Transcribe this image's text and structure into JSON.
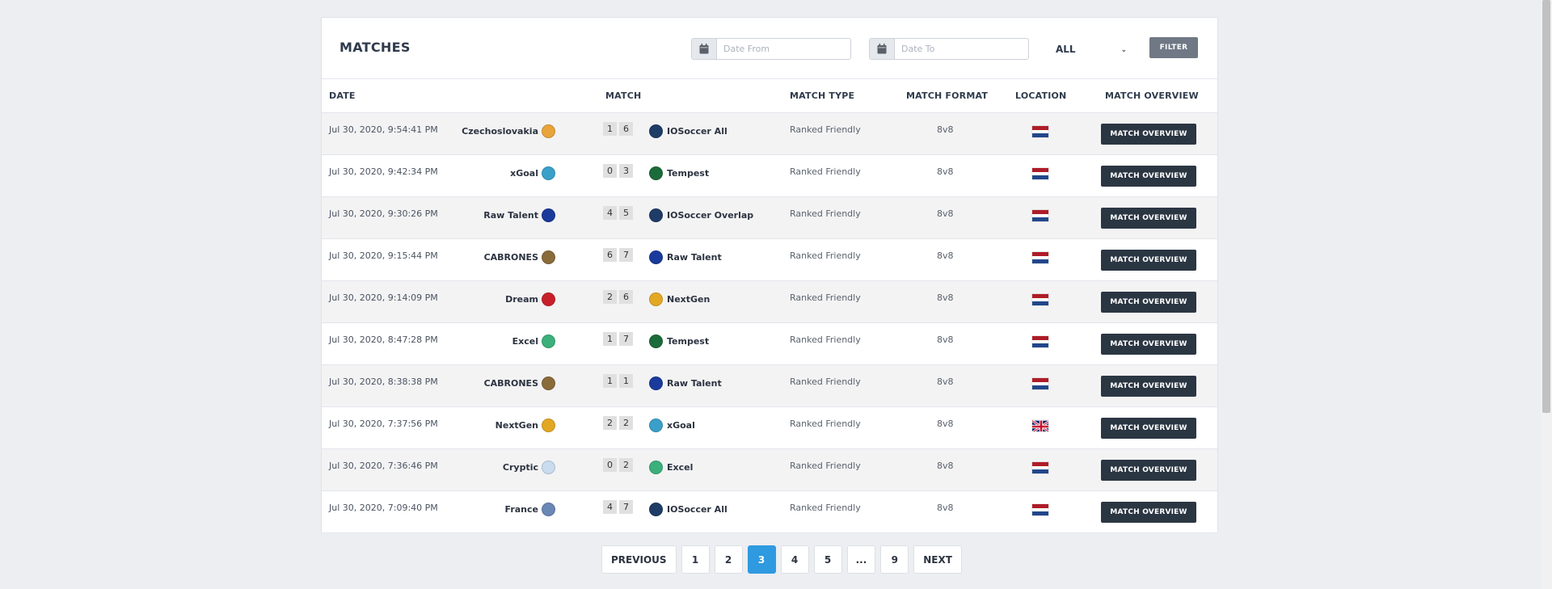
{
  "header": {
    "title": "MATCHES",
    "date_from_placeholder": "Date From",
    "date_to_placeholder": "Date To",
    "type_select_value": "ALL",
    "filter_label": "FILTER"
  },
  "columns": {
    "date": "DATE",
    "match": "MATCH",
    "match_type": "MATCH TYPE",
    "match_format": "MATCH FORMAT",
    "location": "LOCATION",
    "overview": "MATCH OVERVIEW"
  },
  "rows": [
    {
      "date": "Jul 30, 2020, 9:54:41 PM",
      "home": "Czechoslovakia",
      "home_color": "#e8a43a",
      "home_score": "1",
      "away_score": "6",
      "away": "IOSoccer All",
      "away_color": "#1f3c66",
      "type": "Ranked Friendly",
      "format": "8v8",
      "flag": "nl",
      "button": "MATCH OVERVIEW"
    },
    {
      "date": "Jul 30, 2020, 9:42:34 PM",
      "home": "xGoal",
      "home_color": "#3aa0c9",
      "home_score": "0",
      "away_score": "3",
      "away": "Tempest",
      "away_color": "#1c6b3a",
      "type": "Ranked Friendly",
      "format": "8v8",
      "flag": "nl",
      "button": "MATCH OVERVIEW"
    },
    {
      "date": "Jul 30, 2020, 9:30:26 PM",
      "home": "Raw Talent",
      "home_color": "#1a3a9c",
      "home_score": "4",
      "away_score": "5",
      "away": "IOSoccer Overlap",
      "away_color": "#1f3c66",
      "type": "Ranked Friendly",
      "format": "8v8",
      "flag": "nl",
      "button": "MATCH OVERVIEW"
    },
    {
      "date": "Jul 30, 2020, 9:15:44 PM",
      "home": "CABRONES",
      "home_color": "#8a6b3a",
      "home_score": "6",
      "away_score": "7",
      "away": "Raw Talent",
      "away_color": "#1a3a9c",
      "type": "Ranked Friendly",
      "format": "8v8",
      "flag": "nl",
      "button": "MATCH OVERVIEW"
    },
    {
      "date": "Jul 30, 2020, 9:14:09 PM",
      "home": "Dream",
      "home_color": "#c8202a",
      "home_score": "2",
      "away_score": "6",
      "away": "NextGen",
      "away_color": "#e3a823",
      "type": "Ranked Friendly",
      "format": "8v8",
      "flag": "nl",
      "button": "MATCH OVERVIEW"
    },
    {
      "date": "Jul 30, 2020, 8:47:28 PM",
      "home": "Excel",
      "home_color": "#3bb07a",
      "home_score": "1",
      "away_score": "7",
      "away": "Tempest",
      "away_color": "#1c6b3a",
      "type": "Ranked Friendly",
      "format": "8v8",
      "flag": "nl",
      "button": "MATCH OVERVIEW"
    },
    {
      "date": "Jul 30, 2020, 8:38:38 PM",
      "home": "CABRONES",
      "home_color": "#8a6b3a",
      "home_score": "1",
      "away_score": "1",
      "away": "Raw Talent",
      "away_color": "#1a3a9c",
      "type": "Ranked Friendly",
      "format": "8v8",
      "flag": "nl",
      "button": "MATCH OVERVIEW"
    },
    {
      "date": "Jul 30, 2020, 7:37:56 PM",
      "home": "NextGen",
      "home_color": "#e3a823",
      "home_score": "2",
      "away_score": "2",
      "away": "xGoal",
      "away_color": "#3aa0c9",
      "type": "Ranked Friendly",
      "format": "8v8",
      "flag": "uk",
      "button": "MATCH OVERVIEW"
    },
    {
      "date": "Jul 30, 2020, 7:36:46 PM",
      "home": "Cryptic",
      "home_color": "#c9dcef",
      "home_score": "0",
      "away_score": "2",
      "away": "Excel",
      "away_color": "#3bb07a",
      "type": "Ranked Friendly",
      "format": "8v8",
      "flag": "nl",
      "button": "MATCH OVERVIEW"
    },
    {
      "date": "Jul 30, 2020, 7:09:40 PM",
      "home": "France",
      "home_color": "#6a87b5",
      "home_score": "4",
      "away_score": "7",
      "away": "IOSoccer All",
      "away_color": "#1f3c66",
      "type": "Ranked Friendly",
      "format": "8v8",
      "flag": "nl",
      "button": "MATCH OVERVIEW"
    }
  ],
  "pagination": {
    "previous": "PREVIOUS",
    "pages": [
      "1",
      "2",
      "3",
      "4",
      "5",
      "...",
      "9"
    ],
    "current": "3",
    "next": "NEXT"
  }
}
